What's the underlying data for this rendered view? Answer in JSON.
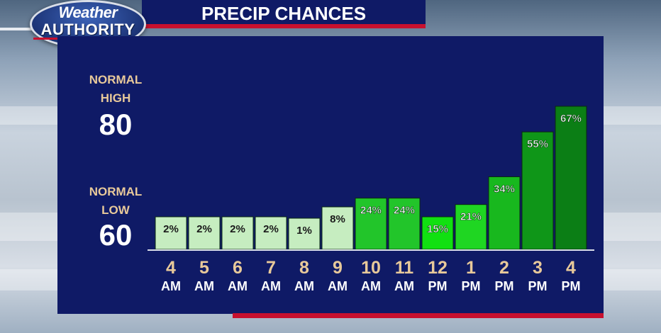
{
  "branding": {
    "logo_line1": "Weather",
    "logo_line2": "AUTHORITY"
  },
  "title": "PRECIP CHANCES",
  "normals": {
    "high_label_1": "NORMAL",
    "high_label_2": "HIGH",
    "high_value": "80",
    "low_label_1": "NORMAL",
    "low_label_2": "LOW",
    "low_value": "60"
  },
  "colors": {
    "panel": "#0f1a66",
    "accent_red": "#c8102e",
    "bar_low": "#c6edc0",
    "label_tan": "#e8c99a"
  },
  "chart_data": {
    "type": "bar",
    "categories": [
      "4 AM",
      "5 AM",
      "6 AM",
      "7 AM",
      "8 AM",
      "9 AM",
      "10 AM",
      "11 AM",
      "12 PM",
      "1 PM",
      "2 PM",
      "3 PM",
      "4 PM"
    ],
    "x_numbers": [
      "4",
      "5",
      "6",
      "7",
      "8",
      "9",
      "10",
      "11",
      "12",
      "1",
      "2",
      "3",
      "4"
    ],
    "x_periods": [
      "AM",
      "AM",
      "AM",
      "AM",
      "AM",
      "AM",
      "AM",
      "AM",
      "PM",
      "PM",
      "PM",
      "PM",
      "PM"
    ],
    "values": [
      2,
      2,
      2,
      2,
      1,
      8,
      24,
      24,
      15,
      21,
      34,
      55,
      67
    ],
    "value_labels": [
      "2%",
      "2%",
      "2%",
      "2%",
      "1%",
      "8%",
      "24%",
      "24%",
      "15%",
      "21%",
      "34%",
      "55%",
      "67%"
    ],
    "bar_colors": [
      "#c6edc0",
      "#c6edc0",
      "#c6edc0",
      "#c6edc0",
      "#c6edc0",
      "#c6edc0",
      "#22c52a",
      "#22c52a",
      "#11e011",
      "#1fd622",
      "#18b81e",
      "#0f9618",
      "#0b7e15"
    ],
    "title": "PRECIP CHANCES",
    "xlabel": "",
    "ylabel": "",
    "grid": false,
    "legend": "none"
  }
}
